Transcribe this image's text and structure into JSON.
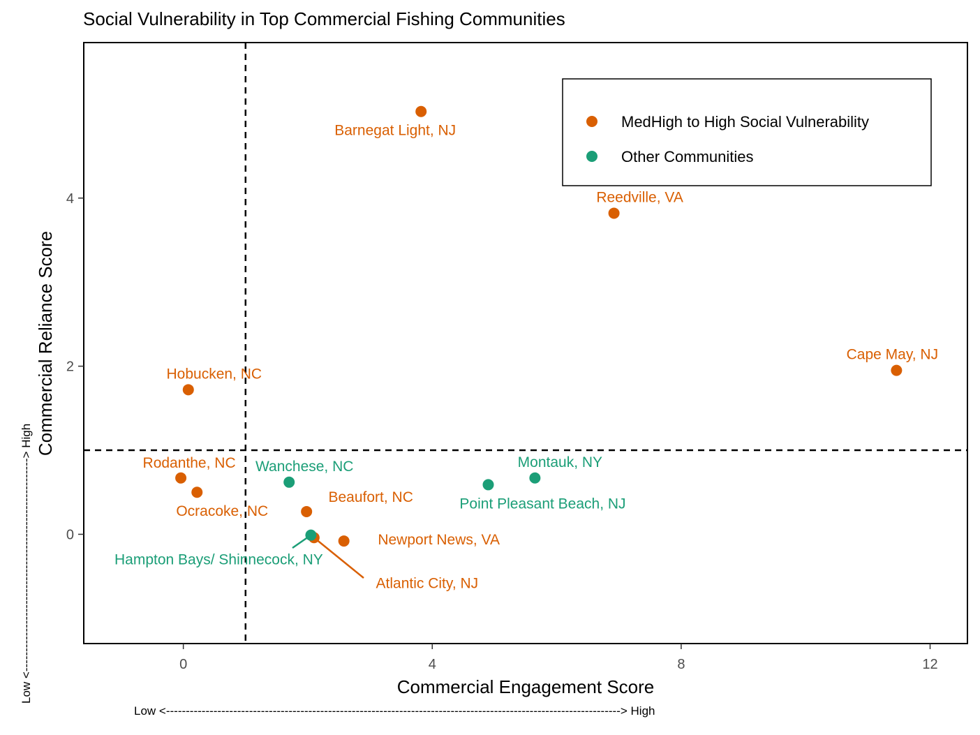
{
  "chart_data": {
    "type": "scatter",
    "title": "Social Vulnerability in Top Commercial Fishing Communities",
    "xlabel": "Commercial Engagement Score",
    "ylabel": "Commercial Reliance Score",
    "x_arrow_note": "Low <-------------------------------------------------------------------------------------------------------------------> High",
    "y_arrow_note": "Low <------------------------------------------------------> High",
    "xlim": [
      -1.6,
      12.6
    ],
    "ylim": [
      -1.3,
      5.85
    ],
    "x_ticks": [
      0,
      4,
      8,
      12
    ],
    "y_ticks": [
      0,
      2,
      4
    ],
    "grid": false,
    "reference_lines": {
      "x": 1.0,
      "y": 1.0,
      "style": "dashed"
    },
    "legend": {
      "placement": "top-right",
      "entries": [
        {
          "name": "MedHigh to High Social Vulnerability",
          "color": "#D95F02"
        },
        {
          "name": "Other Communities",
          "color": "#1B9E77"
        }
      ]
    },
    "series": [
      {
        "name": "MedHigh to High Social Vulnerability",
        "color": "#D95F02",
        "points": [
          {
            "label": "Barnegat Light, NJ",
            "x": 3.82,
            "y": 5.03
          },
          {
            "label": "Reedville, VA",
            "x": 6.92,
            "y": 3.82
          },
          {
            "label": "Cape May, NJ",
            "x": 11.46,
            "y": 1.95
          },
          {
            "label": "Hobucken, NC",
            "x": 0.08,
            "y": 1.72
          },
          {
            "label": "Rodanthe, NC",
            "x": -0.04,
            "y": 0.67
          },
          {
            "label": "Ocracoke, NC",
            "x": 0.22,
            "y": 0.5
          },
          {
            "label": "Beaufort, NC",
            "x": 1.98,
            "y": 0.27
          },
          {
            "label": "Atlantic City, NJ",
            "x": 2.1,
            "y": -0.04
          },
          {
            "label": "Newport News, VA",
            "x": 2.58,
            "y": -0.08
          }
        ]
      },
      {
        "name": "Other Communities",
        "color": "#1B9E77",
        "points": [
          {
            "label": "Wanchese, NC",
            "x": 1.7,
            "y": 0.62
          },
          {
            "label": "Point Pleasant Beach, NJ",
            "x": 4.9,
            "y": 0.59
          },
          {
            "label": "Montauk, NY",
            "x": 5.65,
            "y": 0.67
          },
          {
            "label": "Hampton Bays/ Shinnecock, NY",
            "x": 2.05,
            "y": -0.01
          }
        ]
      }
    ]
  }
}
